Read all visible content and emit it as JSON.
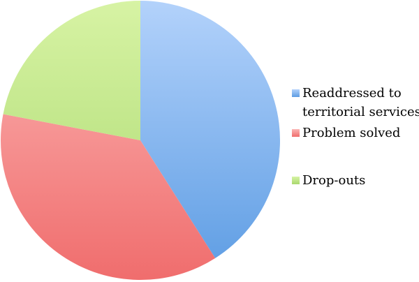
{
  "chart_data": {
    "type": "pie",
    "title": "",
    "legend_position": "right",
    "start_angle_deg": 0,
    "direction": "clockwise",
    "slices": [
      {
        "label_lines": [
          "Readdressed to",
          "territorial services"
        ],
        "value": 41,
        "color": "#5c9ce3",
        "highlight": "#b3d2fb"
      },
      {
        "label_lines": [
          "Problem solved"
        ],
        "value": 37,
        "color": "#f06d6d",
        "highlight": "#fbb5b4"
      },
      {
        "label_lines": [
          "Drop-outs"
        ],
        "value": 22,
        "color": "#a9d86e",
        "highlight": "#d7f3a4"
      }
    ]
  }
}
